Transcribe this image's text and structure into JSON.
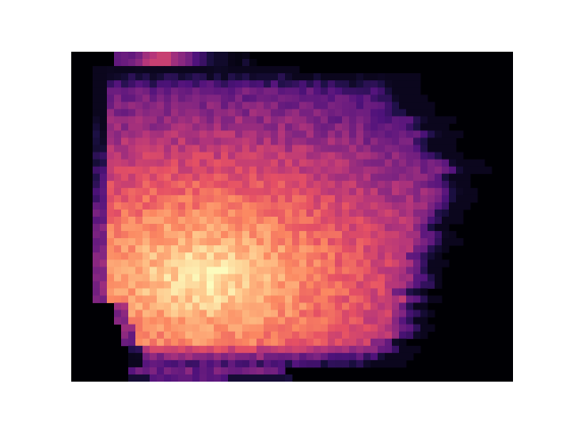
{
  "chart_data": {
    "type": "heatmap",
    "title": "",
    "xlabel": "",
    "ylabel": "",
    "colormap": "magma",
    "axes_visible": false,
    "grid": false,
    "legend": "none",
    "x_bins": 62,
    "y_bins": 46,
    "intensity_range": [
      0,
      1
    ],
    "background_color": "#000004",
    "description_of_structure": "",
    "rows": [
      [
        0,
        0,
        0,
        0,
        0,
        0,
        0.3,
        0.32,
        0.3,
        0.35,
        0.45,
        0.5,
        0.55,
        0.55,
        0.45,
        0.4,
        0.35,
        0.25,
        0.2,
        0.12,
        0.08,
        0.08,
        0.04,
        0.03,
        0.04,
        0.02,
        0.02,
        0.02,
        0,
        0,
        0,
        0,
        0,
        0,
        0,
        0,
        0,
        0,
        0,
        0,
        0,
        0,
        0,
        0,
        0,
        0,
        0,
        0,
        0,
        0,
        0,
        0,
        0,
        0,
        0,
        0,
        0,
        0,
        0,
        0,
        0,
        0
      ],
      [
        0,
        0,
        0,
        0,
        0,
        0,
        0.3,
        0.32,
        0.35,
        0.4,
        0.5,
        0.55,
        0.55,
        0.55,
        0.45,
        0.4,
        0.35,
        0.25,
        0.2,
        0.12,
        0.08,
        0.08,
        0.04,
        0.03,
        0.1,
        0.03,
        0.02,
        0.02,
        0,
        0,
        0,
        0,
        0,
        0,
        0,
        0,
        0,
        0,
        0,
        0,
        0,
        0,
        0,
        0,
        0,
        0,
        0,
        0,
        0,
        0,
        0,
        0,
        0,
        0,
        0,
        0,
        0,
        0,
        0,
        0,
        0,
        0
      ]
    ],
    "bands": [
      {
        "row_start": 2,
        "row_end": 2,
        "x_start": 4,
        "x_end": 31,
        "peak": 0.55,
        "edge": 0.35
      },
      {
        "row_start": 3,
        "row_end": 43,
        "x_start": 4,
        "x_end": 58,
        "peak": 0.97,
        "edge": 0.15
      }
    ]
  }
}
